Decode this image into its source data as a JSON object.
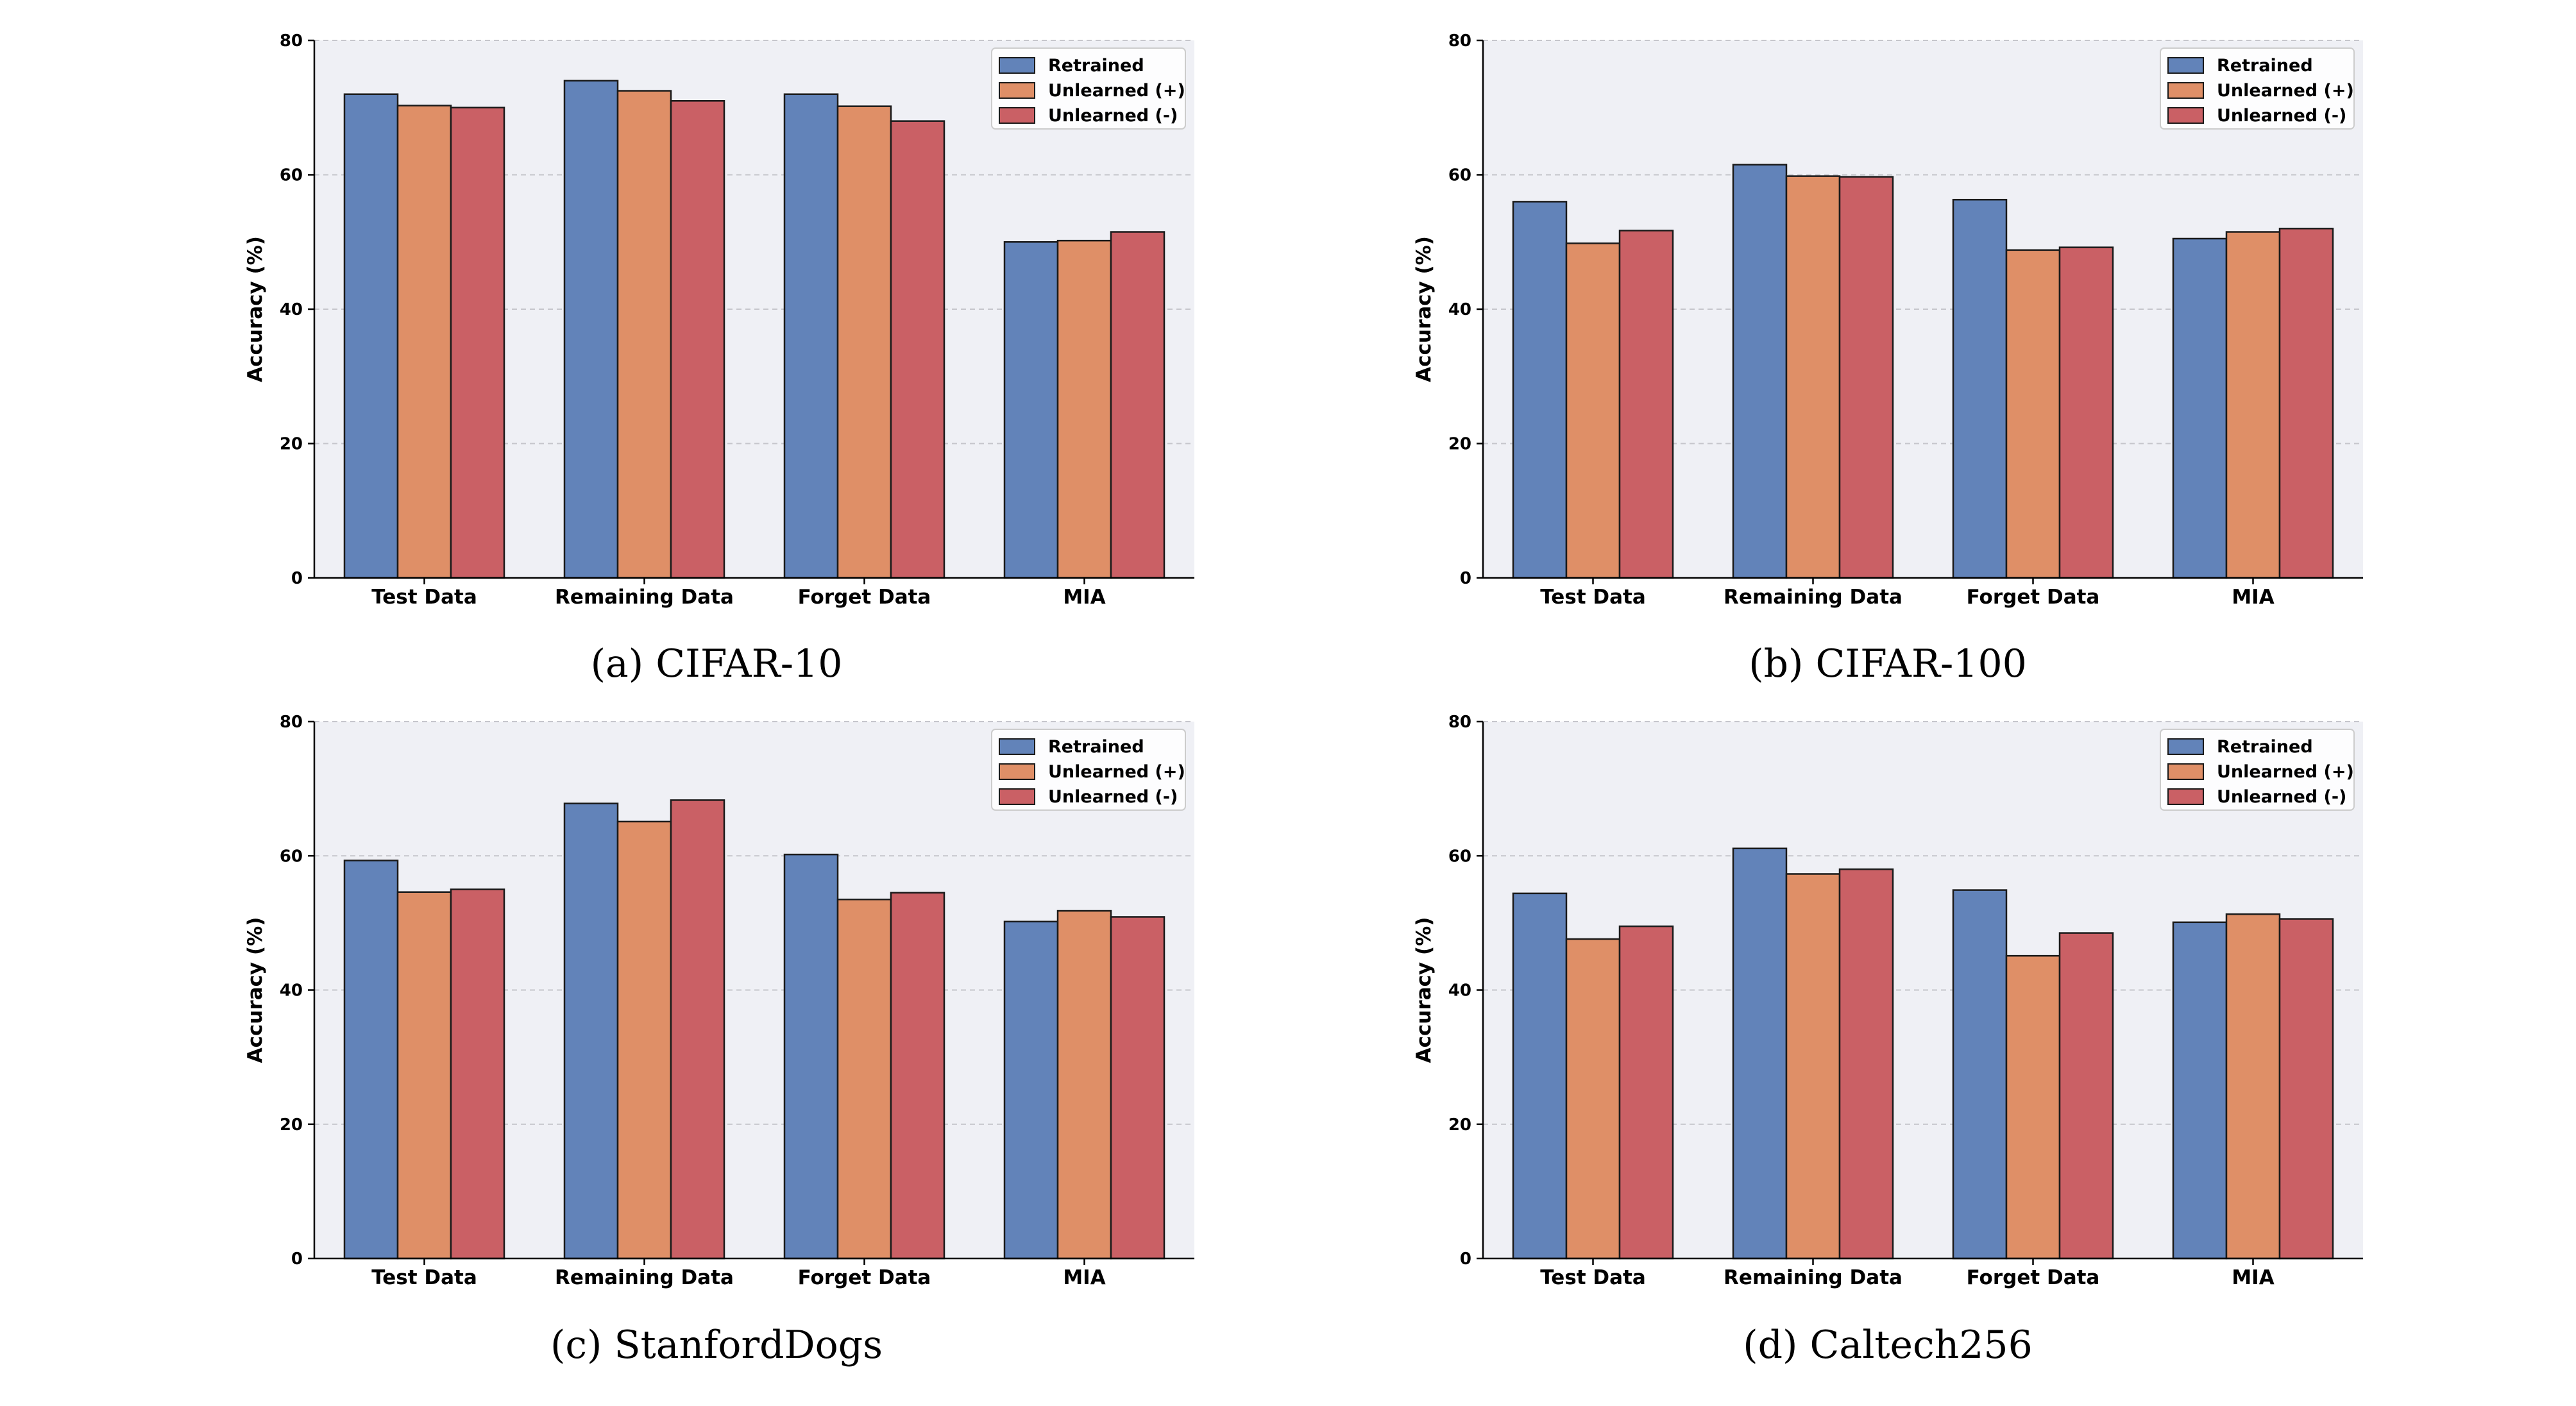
{
  "colors": {
    "Retrained": "#6283b9",
    "Unlearned (+)": "#df8f67",
    "Unlearned (-)": "#ca6065",
    "plot_bg": "#eff0f5",
    "grid": "#c6c6cc",
    "bar_edge": "#1a1a1a"
  },
  "chart_data": [
    {
      "type": "bar",
      "caption": "(a) CIFAR-10",
      "categories": [
        "Test Data",
        "Remaining Data",
        "Forget Data",
        "MIA"
      ],
      "series": [
        {
          "name": "Retrained",
          "values": [
            72.0,
            74.0,
            72.0,
            50.0
          ]
        },
        {
          "name": "Unlearned (+)",
          "values": [
            70.3,
            72.5,
            70.2,
            50.2
          ]
        },
        {
          "name": "Unlearned (-)",
          "values": [
            70.0,
            71.0,
            68.0,
            51.5
          ]
        }
      ],
      "ylabel": "Accuracy (%)",
      "yticks": [
        "0",
        "20",
        "40",
        "60",
        "80"
      ],
      "ylim": [
        0,
        80
      ],
      "legend": "top-right",
      "grid": true
    },
    {
      "type": "bar",
      "caption": "(b) CIFAR-100",
      "categories": [
        "Test Data",
        "Remaining Data",
        "Forget Data",
        "MIA"
      ],
      "series": [
        {
          "name": "Retrained",
          "values": [
            56.0,
            61.5,
            56.3,
            50.5
          ]
        },
        {
          "name": "Unlearned (+)",
          "values": [
            49.8,
            59.8,
            48.8,
            51.5
          ]
        },
        {
          "name": "Unlearned (-)",
          "values": [
            51.7,
            59.7,
            49.2,
            52.0
          ]
        }
      ],
      "ylabel": "Accuracy (%)",
      "yticks": [
        "0",
        "20",
        "40",
        "60",
        "80"
      ],
      "ylim": [
        0,
        80
      ],
      "legend": "top-right",
      "grid": true
    },
    {
      "type": "bar",
      "caption": "(c) StanfordDogs",
      "categories": [
        "Test Data",
        "Remaining Data",
        "Forget Data",
        "MIA"
      ],
      "series": [
        {
          "name": "Retrained",
          "values": [
            59.3,
            67.8,
            60.2,
            50.2
          ]
        },
        {
          "name": "Unlearned (+)",
          "values": [
            54.6,
            65.1,
            53.5,
            51.8
          ]
        },
        {
          "name": "Unlearned (-)",
          "values": [
            55.0,
            68.3,
            54.5,
            50.9
          ]
        }
      ],
      "ylabel": "Accuracy (%)",
      "yticks": [
        "0",
        "20",
        "40",
        "60",
        "80"
      ],
      "ylim": [
        0,
        80
      ],
      "legend": "top-right",
      "grid": true
    },
    {
      "type": "bar",
      "caption": "(d) Caltech256",
      "categories": [
        "Test Data",
        "Remaining Data",
        "Forget Data",
        "MIA"
      ],
      "series": [
        {
          "name": "Retrained",
          "values": [
            54.4,
            61.1,
            54.9,
            50.1
          ]
        },
        {
          "name": "Unlearned (+)",
          "values": [
            47.6,
            57.3,
            45.1,
            51.3
          ]
        },
        {
          "name": "Unlearned (-)",
          "values": [
            49.5,
            58.0,
            48.5,
            50.6
          ]
        }
      ],
      "ylabel": "Accuracy (%)",
      "yticks": [
        "0",
        "20",
        "40",
        "60",
        "80"
      ],
      "ylim": [
        0,
        80
      ],
      "legend": "top-right",
      "grid": true
    }
  ]
}
